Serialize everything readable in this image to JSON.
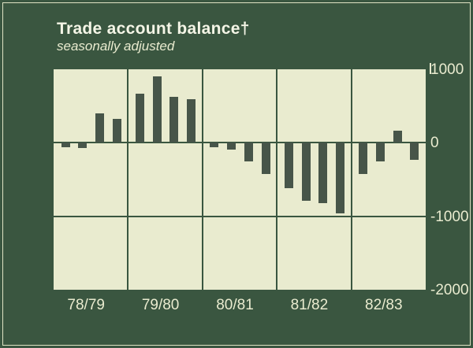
{
  "header": {
    "title": "Trade account balance†",
    "subtitle": "seasonally adjusted"
  },
  "chart_data": {
    "type": "bar",
    "title": "Trade account balance†",
    "subtitle": "seasonally adjusted",
    "categories": [
      "78/79",
      "79/80",
      "80/81",
      "81/82",
      "82/83"
    ],
    "values_per_category": 4,
    "x_note": "4 bars per fiscal-year section (quarterly values)",
    "values": [
      -60,
      -70,
      400,
      330,
      670,
      900,
      620,
      590,
      -60,
      -90,
      -250,
      -430,
      -620,
      -790,
      -820,
      -960,
      -430,
      -250,
      160,
      -230
    ],
    "ylim": [
      -2000,
      1000
    ],
    "yticks": [
      1000,
      0,
      -1000,
      -2000
    ],
    "ytick_labels": [
      "1000",
      "0",
      "-1000",
      "-2000"
    ],
    "grid": "horizontal gridlines at 0 and -1000; vertical separators between year sections; y-axis labels on right side",
    "legend": "none",
    "colors": {
      "background": "#3a5640",
      "plot_background": "#e9ebcf",
      "bar": "#475549",
      "gridline": "#3a5640",
      "text": "#e9ebcf",
      "title_text": "#f4f5e6",
      "frame_line": "#dfe3c4"
    }
  }
}
